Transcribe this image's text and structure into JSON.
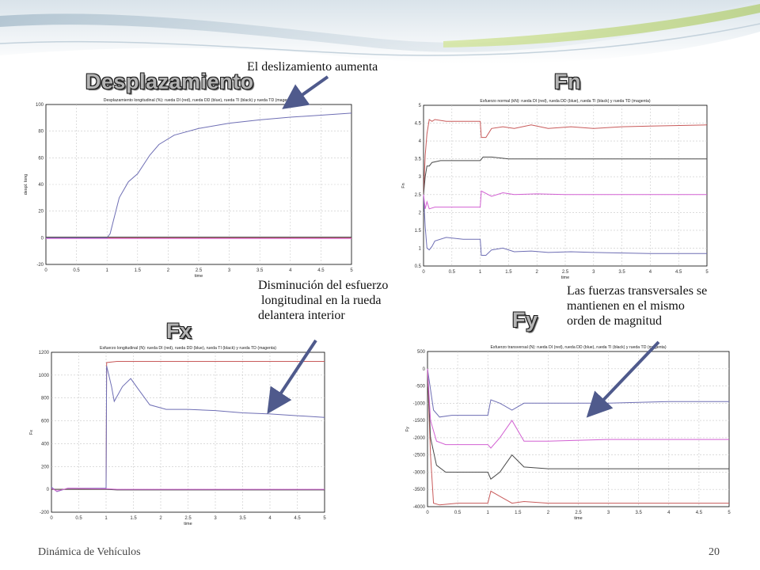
{
  "footer": {
    "left": "Dinámica de Vehículos",
    "page": "20"
  },
  "headings": {
    "desp": "Desplazamiento",
    "fn": "Fn",
    "fx": "Fx",
    "fy": "Fy"
  },
  "annotations": {
    "desp": [
      "El deslizamiento aumenta"
    ],
    "fx": [
      "Disminución del esfuerzo",
      " longitudinal en la rueda",
      "delantera interior"
    ],
    "fy": [
      "Las fuerzas transversales se",
      "mantienen en el mismo",
      "orden de magnitud"
    ]
  },
  "colors": {
    "red": "#c85a5a",
    "blue": "#6e6eb4",
    "black": "#4a4a4a",
    "magenta": "#d260d2",
    "grid": "#c8c8c8",
    "arrow": "#4f5a8c",
    "heading": "#b4b4b4"
  },
  "chart_data": [
    {
      "id": "desp",
      "type": "line",
      "title": "Desplazamiento longitudinal (%): rueda DI (red), rueda DD (blue), rueda TI (black) y rueda TD (magenta)",
      "xlabel": "time",
      "ylabel": "despl. long",
      "xlim": [
        0,
        5
      ],
      "ylim": [
        -20,
        100
      ],
      "xticks": [
        "0",
        "0.5",
        "1",
        "1.5",
        "2",
        "2.5",
        "3",
        "3.5",
        "4",
        "4.5",
        "5"
      ],
      "yticks": [
        "-20",
        "0",
        "20",
        "40",
        "60",
        "80",
        "100"
      ],
      "grid": true,
      "series": [
        {
          "name": "DI",
          "color": "red",
          "points": [
            [
              0,
              0
            ],
            [
              5,
              0
            ]
          ]
        },
        {
          "name": "DD",
          "color": "blue",
          "points": [
            [
              0,
              0
            ],
            [
              1.0,
              0
            ],
            [
              1.05,
              3
            ],
            [
              1.1,
              12
            ],
            [
              1.2,
              30
            ],
            [
              1.35,
              42
            ],
            [
              1.5,
              48
            ],
            [
              1.7,
              62
            ],
            [
              1.85,
              70
            ],
            [
              2.1,
              77
            ],
            [
              2.5,
              82
            ],
            [
              3,
              86
            ],
            [
              3.5,
              88.5
            ],
            [
              4,
              90.5
            ],
            [
              4.5,
              92
            ],
            [
              5,
              93.5
            ]
          ]
        },
        {
          "name": "TI",
          "color": "black",
          "points": [
            [
              0,
              0.5
            ],
            [
              5,
              0.5
            ]
          ]
        },
        {
          "name": "TD",
          "color": "magenta",
          "points": [
            [
              0,
              -0.5
            ],
            [
              5,
              -0.5
            ]
          ]
        }
      ]
    },
    {
      "id": "fn",
      "type": "line",
      "title": "Esfuerzo normal (kN): rueda DI (red), rueda DD (blue), rueda TI (black) y rueda TD (magenta)",
      "xlabel": "time",
      "ylabel": "Fn",
      "xlim": [
        0,
        5
      ],
      "ylim": [
        0.5,
        5
      ],
      "xticks": [
        "0",
        "0.5",
        "1",
        "1.5",
        "2",
        "2.5",
        "3",
        "3.5",
        "4",
        "4.5",
        "5"
      ],
      "yticks": [
        "0.5",
        "1",
        "1.5",
        "2",
        "2.5",
        "3",
        "3.5",
        "4",
        "4.5",
        "5"
      ],
      "grid": true,
      "series": [
        {
          "name": "DI",
          "color": "red",
          "points": [
            [
              0,
              2.5
            ],
            [
              0.03,
              3.6
            ],
            [
              0.06,
              4.2
            ],
            [
              0.1,
              4.6
            ],
            [
              0.15,
              4.55
            ],
            [
              0.2,
              4.6
            ],
            [
              0.4,
              4.55
            ],
            [
              0.7,
              4.55
            ],
            [
              1.0,
              4.55
            ],
            [
              1.02,
              4.1
            ],
            [
              1.1,
              4.1
            ],
            [
              1.2,
              4.35
            ],
            [
              1.4,
              4.4
            ],
            [
              1.6,
              4.35
            ],
            [
              1.9,
              4.45
            ],
            [
              2.2,
              4.35
            ],
            [
              2.6,
              4.4
            ],
            [
              3,
              4.35
            ],
            [
              3.5,
              4.4
            ],
            [
              4,
              4.42
            ],
            [
              5,
              4.45
            ]
          ]
        },
        {
          "name": "DD",
          "color": "blue",
          "points": [
            [
              0,
              2.5
            ],
            [
              0.03,
              1.6
            ],
            [
              0.06,
              1.0
            ],
            [
              0.1,
              0.95
            ],
            [
              0.15,
              1.05
            ],
            [
              0.2,
              1.2
            ],
            [
              0.4,
              1.3
            ],
            [
              0.7,
              1.25
            ],
            [
              1.0,
              1.25
            ],
            [
              1.02,
              0.8
            ],
            [
              1.1,
              0.8
            ],
            [
              1.2,
              0.95
            ],
            [
              1.4,
              1.0
            ],
            [
              1.6,
              0.9
            ],
            [
              1.9,
              0.92
            ],
            [
              2.2,
              0.88
            ],
            [
              2.6,
              0.9
            ],
            [
              3,
              0.88
            ],
            [
              4,
              0.85
            ],
            [
              5,
              0.85
            ]
          ]
        },
        {
          "name": "TI",
          "color": "black",
          "points": [
            [
              0,
              2.5
            ],
            [
              0.03,
              3.0
            ],
            [
              0.06,
              3.3
            ],
            [
              0.1,
              3.3
            ],
            [
              0.15,
              3.4
            ],
            [
              0.3,
              3.45
            ],
            [
              0.6,
              3.45
            ],
            [
              1.0,
              3.45
            ],
            [
              1.05,
              3.55
            ],
            [
              1.2,
              3.55
            ],
            [
              1.5,
              3.5
            ],
            [
              2,
              3.5
            ],
            [
              3,
              3.5
            ],
            [
              4,
              3.5
            ],
            [
              5,
              3.5
            ]
          ]
        },
        {
          "name": "TD",
          "color": "magenta",
          "points": [
            [
              0,
              2.5
            ],
            [
              0.03,
              2.1
            ],
            [
              0.06,
              2.3
            ],
            [
              0.1,
              2.1
            ],
            [
              0.2,
              2.15
            ],
            [
              0.6,
              2.15
            ],
            [
              1.0,
              2.15
            ],
            [
              1.02,
              2.6
            ],
            [
              1.2,
              2.45
            ],
            [
              1.4,
              2.55
            ],
            [
              1.6,
              2.5
            ],
            [
              2,
              2.52
            ],
            [
              2.5,
              2.5
            ],
            [
              3,
              2.5
            ],
            [
              4,
              2.5
            ],
            [
              5,
              2.5
            ]
          ]
        }
      ]
    },
    {
      "id": "fx",
      "type": "line",
      "title": "Esfuerzo longitudinal (N): rueda DI (red), rueda DD (blue), rueda TI (black) y rueda TD (magenta)",
      "xlabel": "time",
      "ylabel": "Fx",
      "xlim": [
        0,
        5
      ],
      "ylim": [
        -200,
        1200
      ],
      "xticks": [
        "0",
        "0.5",
        "1",
        "1.5",
        "2",
        "2.5",
        "3",
        "3.5",
        "4",
        "4.5",
        "5"
      ],
      "yticks": [
        "-200",
        "0",
        "200",
        "400",
        "600",
        "800",
        "1000",
        "1200"
      ],
      "grid": true,
      "series": [
        {
          "name": "DI",
          "color": "red",
          "points": [
            [
              0,
              0
            ],
            [
              1.0,
              0
            ],
            [
              1.01,
              1110
            ],
            [
              1.2,
              1120
            ],
            [
              2,
              1120
            ],
            [
              3,
              1120
            ],
            [
              4,
              1120
            ],
            [
              5,
              1120
            ]
          ]
        },
        {
          "name": "DD",
          "color": "blue",
          "points": [
            [
              0,
              20
            ],
            [
              0.1,
              -20
            ],
            [
              0.3,
              10
            ],
            [
              1.0,
              10
            ],
            [
              1.01,
              1080
            ],
            [
              1.1,
              900
            ],
            [
              1.15,
              770
            ],
            [
              1.3,
              900
            ],
            [
              1.45,
              970
            ],
            [
              1.6,
              870
            ],
            [
              1.8,
              740
            ],
            [
              2.1,
              700
            ],
            [
              2.5,
              700
            ],
            [
              3,
              690
            ],
            [
              3.5,
              670
            ],
            [
              4,
              660
            ],
            [
              4.5,
              645
            ],
            [
              5,
              630
            ]
          ]
        },
        {
          "name": "TI",
          "color": "black",
          "points": [
            [
              0,
              0
            ],
            [
              1.0,
              0
            ],
            [
              1.2,
              -5
            ],
            [
              5,
              -5
            ]
          ]
        },
        {
          "name": "TD",
          "color": "magenta",
          "points": [
            [
              0,
              10
            ],
            [
              0.1,
              -15
            ],
            [
              0.3,
              10
            ],
            [
              1.0,
              5
            ],
            [
              1.2,
              0
            ],
            [
              5,
              0
            ]
          ]
        }
      ]
    },
    {
      "id": "fy",
      "type": "line",
      "title": "Esfuerzo transversal (N): rueda DI (red), rueda DD (blue), rueda TI (black) y rueda TD (magenta)",
      "xlabel": "time",
      "ylabel": "Fy",
      "xlim": [
        0,
        5
      ],
      "ylim": [
        -4000,
        500
      ],
      "xticks": [
        "0",
        "0.5",
        "1",
        "1.5",
        "2",
        "2.5",
        "3",
        "3.5",
        "4",
        "4.5",
        "5"
      ],
      "yticks": [
        "-4000",
        "-3500",
        "-3000",
        "-2500",
        "-2000",
        "-1500",
        "-1000",
        "-500",
        "0",
        "500"
      ],
      "grid": true,
      "series": [
        {
          "name": "DI",
          "color": "red",
          "points": [
            [
              0,
              0
            ],
            [
              0.05,
              -2500
            ],
            [
              0.1,
              -3900
            ],
            [
              0.2,
              -3950
            ],
            [
              0.5,
              -3900
            ],
            [
              1.0,
              -3900
            ],
            [
              1.05,
              -3550
            ],
            [
              1.2,
              -3700
            ],
            [
              1.4,
              -3900
            ],
            [
              1.6,
              -3850
            ],
            [
              2,
              -3900
            ],
            [
              3,
              -3900
            ],
            [
              4,
              -3900
            ],
            [
              5,
              -3900
            ]
          ]
        },
        {
          "name": "DD",
          "color": "blue",
          "points": [
            [
              0,
              0
            ],
            [
              0.05,
              -600
            ],
            [
              0.1,
              -1200
            ],
            [
              0.2,
              -1400
            ],
            [
              0.4,
              -1350
            ],
            [
              1.0,
              -1350
            ],
            [
              1.05,
              -900
            ],
            [
              1.2,
              -1000
            ],
            [
              1.4,
              -1200
            ],
            [
              1.6,
              -1000
            ],
            [
              2,
              -1000
            ],
            [
              3,
              -1000
            ],
            [
              4,
              -950
            ],
            [
              5,
              -950
            ]
          ]
        },
        {
          "name": "TI",
          "color": "black",
          "points": [
            [
              0,
              0
            ],
            [
              0.05,
              -2000
            ],
            [
              0.15,
              -2800
            ],
            [
              0.3,
              -3000
            ],
            [
              0.6,
              -3000
            ],
            [
              1.0,
              -3000
            ],
            [
              1.05,
              -3200
            ],
            [
              1.2,
              -3000
            ],
            [
              1.4,
              -2500
            ],
            [
              1.6,
              -2850
            ],
            [
              2,
              -2900
            ],
            [
              3,
              -2900
            ],
            [
              4,
              -2900
            ],
            [
              5,
              -2900
            ]
          ]
        },
        {
          "name": "TD",
          "color": "magenta",
          "points": [
            [
              0,
              0
            ],
            [
              0.05,
              -1500
            ],
            [
              0.15,
              -2100
            ],
            [
              0.3,
              -2200
            ],
            [
              0.6,
              -2200
            ],
            [
              1.0,
              -2200
            ],
            [
              1.05,
              -2300
            ],
            [
              1.2,
              -2000
            ],
            [
              1.4,
              -1500
            ],
            [
              1.6,
              -2100
            ],
            [
              2,
              -2100
            ],
            [
              3,
              -2050
            ],
            [
              4,
              -2050
            ],
            [
              5,
              -2050
            ]
          ]
        }
      ]
    }
  ]
}
